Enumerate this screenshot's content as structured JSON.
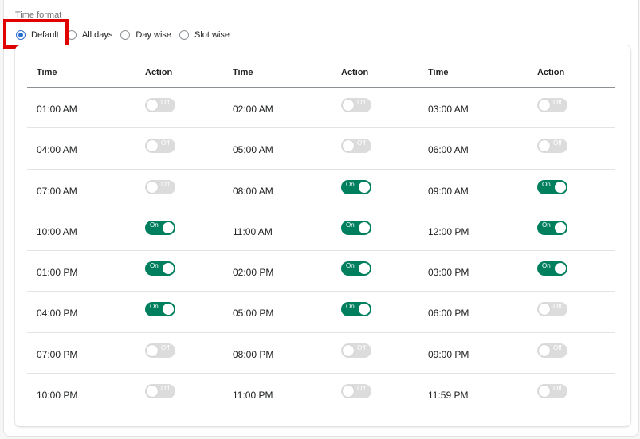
{
  "time_format": {
    "label": "Time format",
    "options": [
      {
        "label": "Default",
        "checked": true
      },
      {
        "label": "All days",
        "checked": false
      },
      {
        "label": "Day wise",
        "checked": false
      },
      {
        "label": "Slot wise",
        "checked": false
      }
    ]
  },
  "table": {
    "headers": [
      "Time",
      "Action",
      "Time",
      "Action",
      "Time",
      "Action"
    ],
    "toggle_labels": {
      "on": "On",
      "off": "Off"
    },
    "rows": [
      [
        {
          "time": "01:00 AM",
          "on": false
        },
        {
          "time": "02:00 AM",
          "on": false
        },
        {
          "time": "03:00 AM",
          "on": false
        }
      ],
      [
        {
          "time": "04:00 AM",
          "on": false
        },
        {
          "time": "05:00 AM",
          "on": false
        },
        {
          "time": "06:00 AM",
          "on": false
        }
      ],
      [
        {
          "time": "07:00 AM",
          "on": false
        },
        {
          "time": "08:00 AM",
          "on": true
        },
        {
          "time": "09:00 AM",
          "on": true
        }
      ],
      [
        {
          "time": "10:00 AM",
          "on": true
        },
        {
          "time": "11:00 AM",
          "on": true
        },
        {
          "time": "12:00 PM",
          "on": true
        }
      ],
      [
        {
          "time": "01:00 PM",
          "on": true
        },
        {
          "time": "02:00 PM",
          "on": true
        },
        {
          "time": "03:00 PM",
          "on": true
        }
      ],
      [
        {
          "time": "04:00 PM",
          "on": true
        },
        {
          "time": "05:00 PM",
          "on": true
        },
        {
          "time": "06:00 PM",
          "on": false
        }
      ],
      [
        {
          "time": "07:00 PM",
          "on": false
        },
        {
          "time": "08:00 PM",
          "on": false
        },
        {
          "time": "09:00 PM",
          "on": false
        }
      ],
      [
        {
          "time": "10:00 PM",
          "on": false
        },
        {
          "time": "11:00 PM",
          "on": false
        },
        {
          "time": "11:59 PM",
          "on": false
        }
      ]
    ]
  },
  "colors": {
    "toggle_on": "#007f5f",
    "toggle_off": "#dcdcdc",
    "radio_checked": "#2c6ecb",
    "highlight": "#e00000"
  }
}
